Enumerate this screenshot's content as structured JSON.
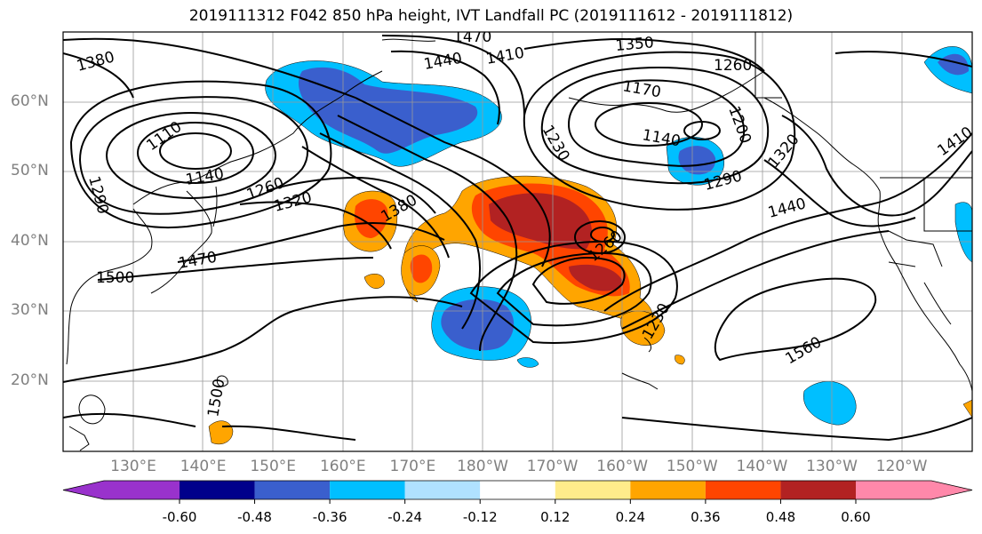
{
  "title": "2019111312 F042 850 hPa height, IVT Landfall PC (2019111612 - 2019111812)",
  "lat_labels": [
    "60°N",
    "50°N",
    "40°N",
    "30°N",
    "20°N"
  ],
  "lon_labels": [
    "130°E",
    "140°E",
    "150°E",
    "160°E",
    "170°E",
    "180°W",
    "170°W",
    "160°W",
    "150°W",
    "140°W",
    "130°W",
    "120°W"
  ],
  "colorbar": {
    "colors": [
      "#9932cc",
      "#00008b",
      "#3a5fcd",
      "#00bfff",
      "#b0e2ff",
      "#ffffff",
      "#ffec8b",
      "#ffa500",
      "#ff4500",
      "#b22222",
      "#ff88aa"
    ],
    "tick_labels": [
      "-0.60",
      "-0.48",
      "-0.36",
      "-0.24",
      "-0.12",
      "0.12",
      "0.24",
      "0.36",
      "0.48",
      "0.60"
    ]
  },
  "contour_labels": [
    "1380",
    "1470",
    "1440",
    "1410",
    "1350",
    "1260",
    "1170",
    "1200",
    "1230",
    "1140",
    "1290",
    "1320",
    "1410",
    "1110",
    "1260",
    "1320",
    "1290",
    "1140",
    "1380",
    "1260",
    "1470",
    "1500",
    "1440",
    "1230",
    "1560",
    "1500"
  ]
}
